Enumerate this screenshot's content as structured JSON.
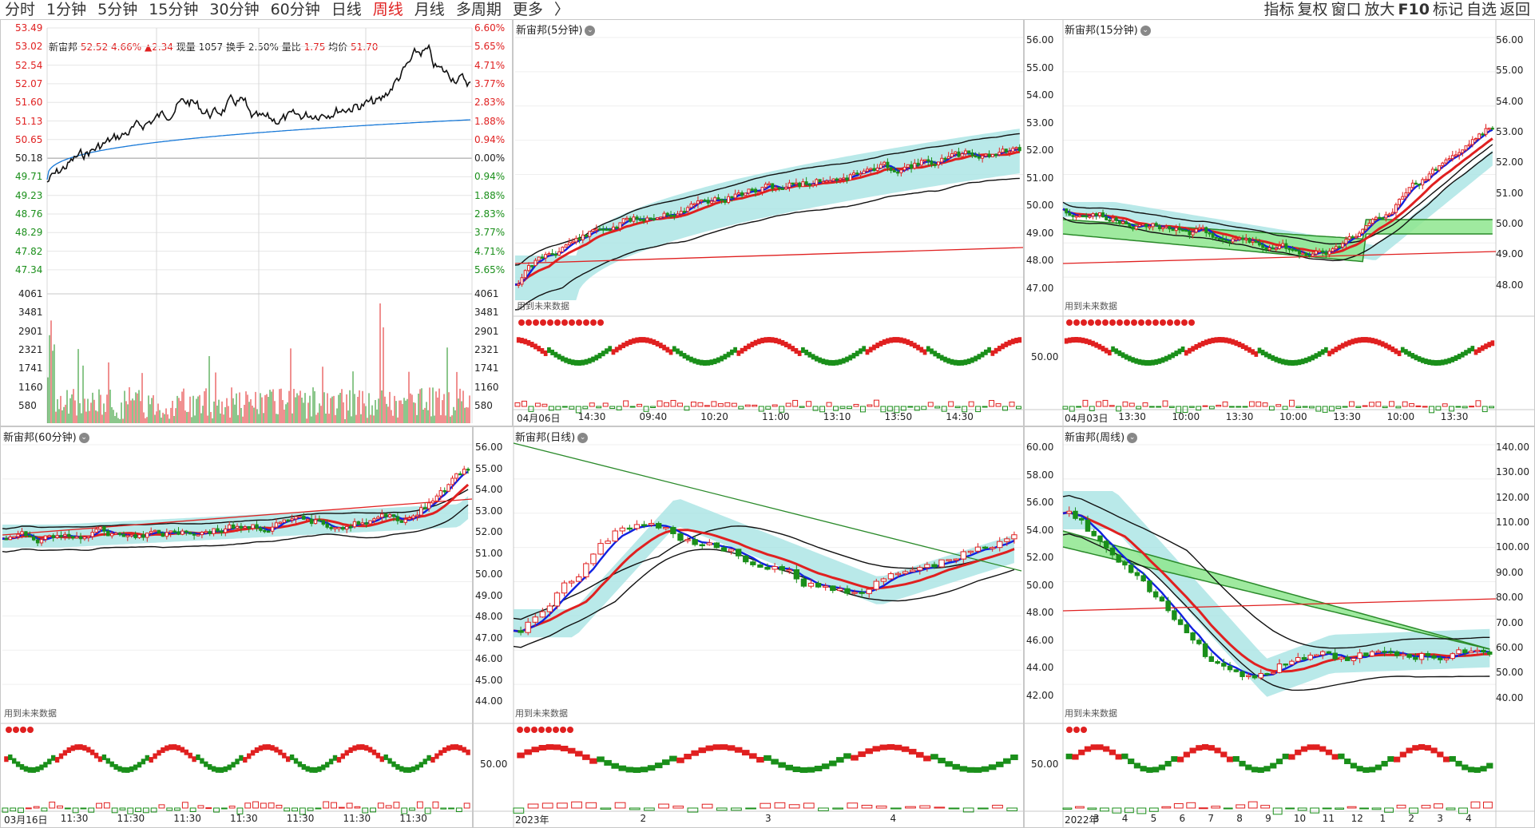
{
  "periods": [
    "分时",
    "1分钟",
    "5分钟",
    "15分钟",
    "30分钟",
    "60分钟",
    "日线",
    "周线",
    "月线",
    "多周期",
    "更多",
    "〉"
  ],
  "active_period": "周线",
  "toolbar": [
    "指标",
    "复权",
    "窗口",
    "放大",
    "F10",
    "标记",
    "自选",
    "返回"
  ],
  "colors": {
    "up": "#e02020",
    "down": "#1a8f1a",
    "ma_blue": "#1020e0",
    "ma_black": "#111111",
    "cloud": "#a8e4e4",
    "green_cloud": "#8ee68e"
  },
  "intraday": {
    "name": "新宙邦",
    "price": "52.52",
    "pct": "4.66%",
    "change": "▲2.34",
    "volume_label": "现量",
    "volume": "1057",
    "turnover_label": "换手",
    "turnover": "2.50%",
    "ratio_label": "量比",
    "ratio": "1.75",
    "avg_label": "均价",
    "avg": "51.70",
    "price_ticks": [
      "53.49",
      "53.02",
      "52.54",
      "52.07",
      "51.60",
      "51.13",
      "50.65",
      "50.18",
      "49.71",
      "49.23",
      "48.76",
      "48.29",
      "47.82",
      "47.34"
    ],
    "pct_ticks": [
      "6.60%",
      "5.65%",
      "4.71%",
      "3.77%",
      "2.83%",
      "1.88%",
      "0.94%",
      "0.00%",
      "0.94%",
      "1.88%",
      "2.83%",
      "3.77%",
      "4.71%",
      "5.65%"
    ],
    "vol_ticks": [
      "4061",
      "3481",
      "2901",
      "2321",
      "1741",
      "1160",
      "580"
    ]
  },
  "panels": {
    "p5": {
      "title": "新宙邦(5分钟)",
      "note": "用到未来数据",
      "xticks": [
        "04月06日",
        "14:30",
        "09:40",
        "10:20",
        "11:00",
        "13:10",
        "13:50",
        "14:30"
      ]
    },
    "p15": {
      "title": "新宙邦(15分钟)",
      "note": "用到未来数据",
      "yticks": [
        "56.00",
        "55.00",
        "54.00",
        "53.00",
        "52.00",
        "51.00",
        "50.00",
        "49.00",
        "48.00",
        "47.00"
      ],
      "yticks_right": [
        "56.00",
        "55.00",
        "54.00",
        "53.00",
        "52.00",
        "51.00",
        "50.00",
        "49.00",
        "48.00"
      ],
      "sub_tick": "50.00",
      "xticks": [
        "04月03日",
        "13:30",
        "10:00",
        "13:30",
        "10:00",
        "13:30",
        "10:00",
        "13:30"
      ]
    },
    "p60": {
      "title": "新宙邦(60分钟)",
      "note": "用到未来数据",
      "xticks": [
        "03月16日",
        "11:30",
        "11:30",
        "11:30",
        "11:30",
        "11:30",
        "11:30",
        "11:30"
      ]
    },
    "pday": {
      "title": "新宙邦(日线)",
      "note": "用到未来数据",
      "yticks": [
        "56.00",
        "55.00",
        "54.00",
        "53.00",
        "52.00",
        "51.00",
        "50.00",
        "49.00",
        "48.00",
        "47.00",
        "46.00",
        "45.00",
        "44.00"
      ],
      "sub_tick": "50.00",
      "xticks": [
        "2023年",
        "2",
        "3",
        "4"
      ]
    },
    "pweek": {
      "title": "新宙邦(周线)",
      "note": "用到未来数据",
      "yticks": [
        "60.00",
        "58.00",
        "56.00",
        "54.00",
        "52.00",
        "50.00",
        "48.00",
        "46.00",
        "44.00",
        "42.00"
      ],
      "yticks_right": [
        "140.00",
        "130.00",
        "120.00",
        "110.00",
        "100.00",
        "90.00",
        "80.00",
        "70.00",
        "60.00",
        "50.00",
        "40.00"
      ],
      "sub_tick": "50.00",
      "xticks": [
        "2022年",
        "3",
        "4",
        "5",
        "6",
        "7",
        "8",
        "9",
        "10",
        "11",
        "12",
        "1",
        "2",
        "3",
        "4"
      ]
    }
  }
}
